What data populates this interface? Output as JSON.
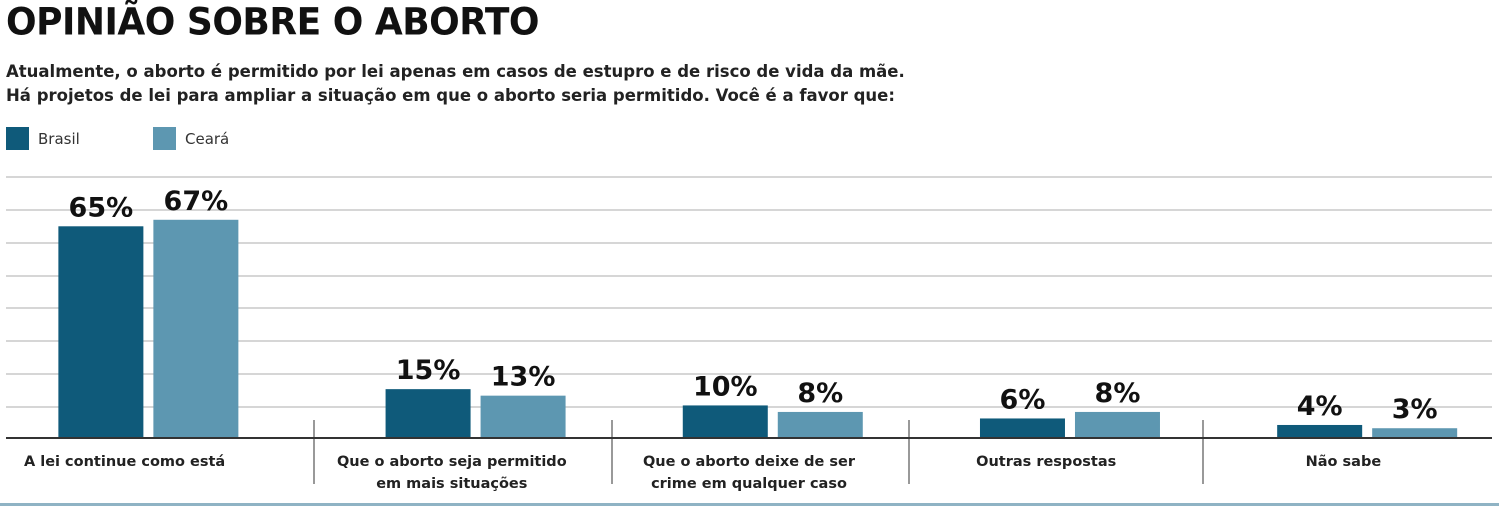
{
  "title": "OPINIÃO SOBRE O ABORTO",
  "subtitle_lines": [
    "Atualmente, o aborto é permitido por lei apenas em casos de estupro e de risco de vida da mãe.",
    "Há projetos de lei para ampliar a situação em que o aborto seria permitido. Você é a favor que:"
  ],
  "colors": {
    "brasil": "#0f5a7a",
    "ceara": "#5d97b1",
    "grid": "#c8c8c8",
    "axis": "#333333"
  },
  "chart_data": {
    "type": "bar",
    "title": "OPINIÃO SOBRE O ABORTO",
    "xlabel": "",
    "ylabel": "",
    "ylim": [
      0,
      70
    ],
    "grid": true,
    "legend_position": "top-left",
    "categories": [
      [
        "A lei continue como está"
      ],
      [
        "Que o aborto seja permitido",
        "em mais situações"
      ],
      [
        "Que o aborto deixe de ser",
        "crime em qualquer caso"
      ],
      [
        "Outras respostas"
      ],
      [
        "Não sabe"
      ]
    ],
    "series": [
      {
        "name": "Brasil",
        "values": [
          65,
          15,
          10,
          6,
          4
        ],
        "labels": [
          "65%",
          "15%",
          "10%",
          "6%",
          "4%"
        ]
      },
      {
        "name": "Ceará",
        "values": [
          67,
          13,
          8,
          8,
          3
        ],
        "labels": [
          "67%",
          "13%",
          "8%",
          "8%",
          "3%"
        ]
      }
    ]
  }
}
